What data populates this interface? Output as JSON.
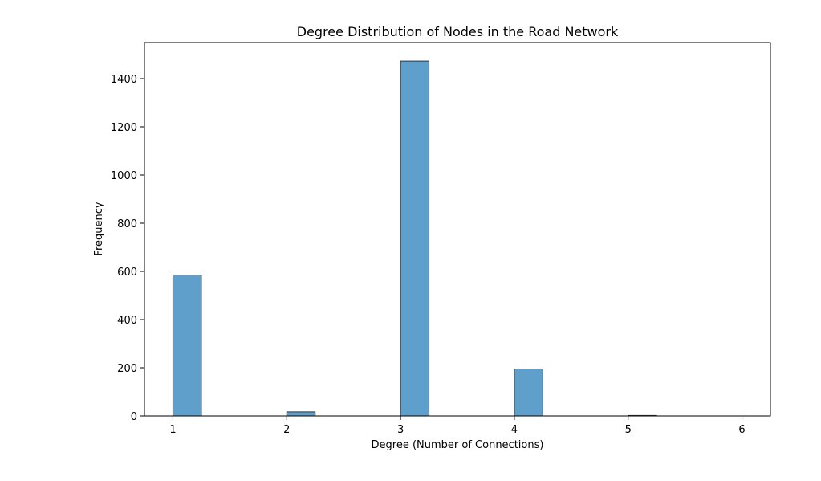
{
  "chart_data": {
    "type": "bar",
    "title": "Degree Distribution of Nodes in the Road Network",
    "xlabel": "Degree (Number of Connections)",
    "ylabel": "Frequency",
    "xlim": [
      0.75,
      6.25
    ],
    "ylim": [
      0,
      1550
    ],
    "xticks": [
      1,
      2,
      3,
      4,
      5,
      6
    ],
    "yticks": [
      0,
      200,
      400,
      600,
      800,
      1000,
      1200,
      1400
    ],
    "bin_width": 0.25,
    "bins": [
      {
        "start": 1.0,
        "value": 585
      },
      {
        "start": 2.0,
        "value": 17
      },
      {
        "start": 3.0,
        "value": 1473
      },
      {
        "start": 4.0,
        "value": 195
      },
      {
        "start": 5.0,
        "value": 2
      }
    ],
    "grid": false,
    "legend": "none",
    "colors": {
      "bar_fill": "#5f9fcc",
      "bar_edge": "#333333",
      "axis": "#000000"
    }
  }
}
